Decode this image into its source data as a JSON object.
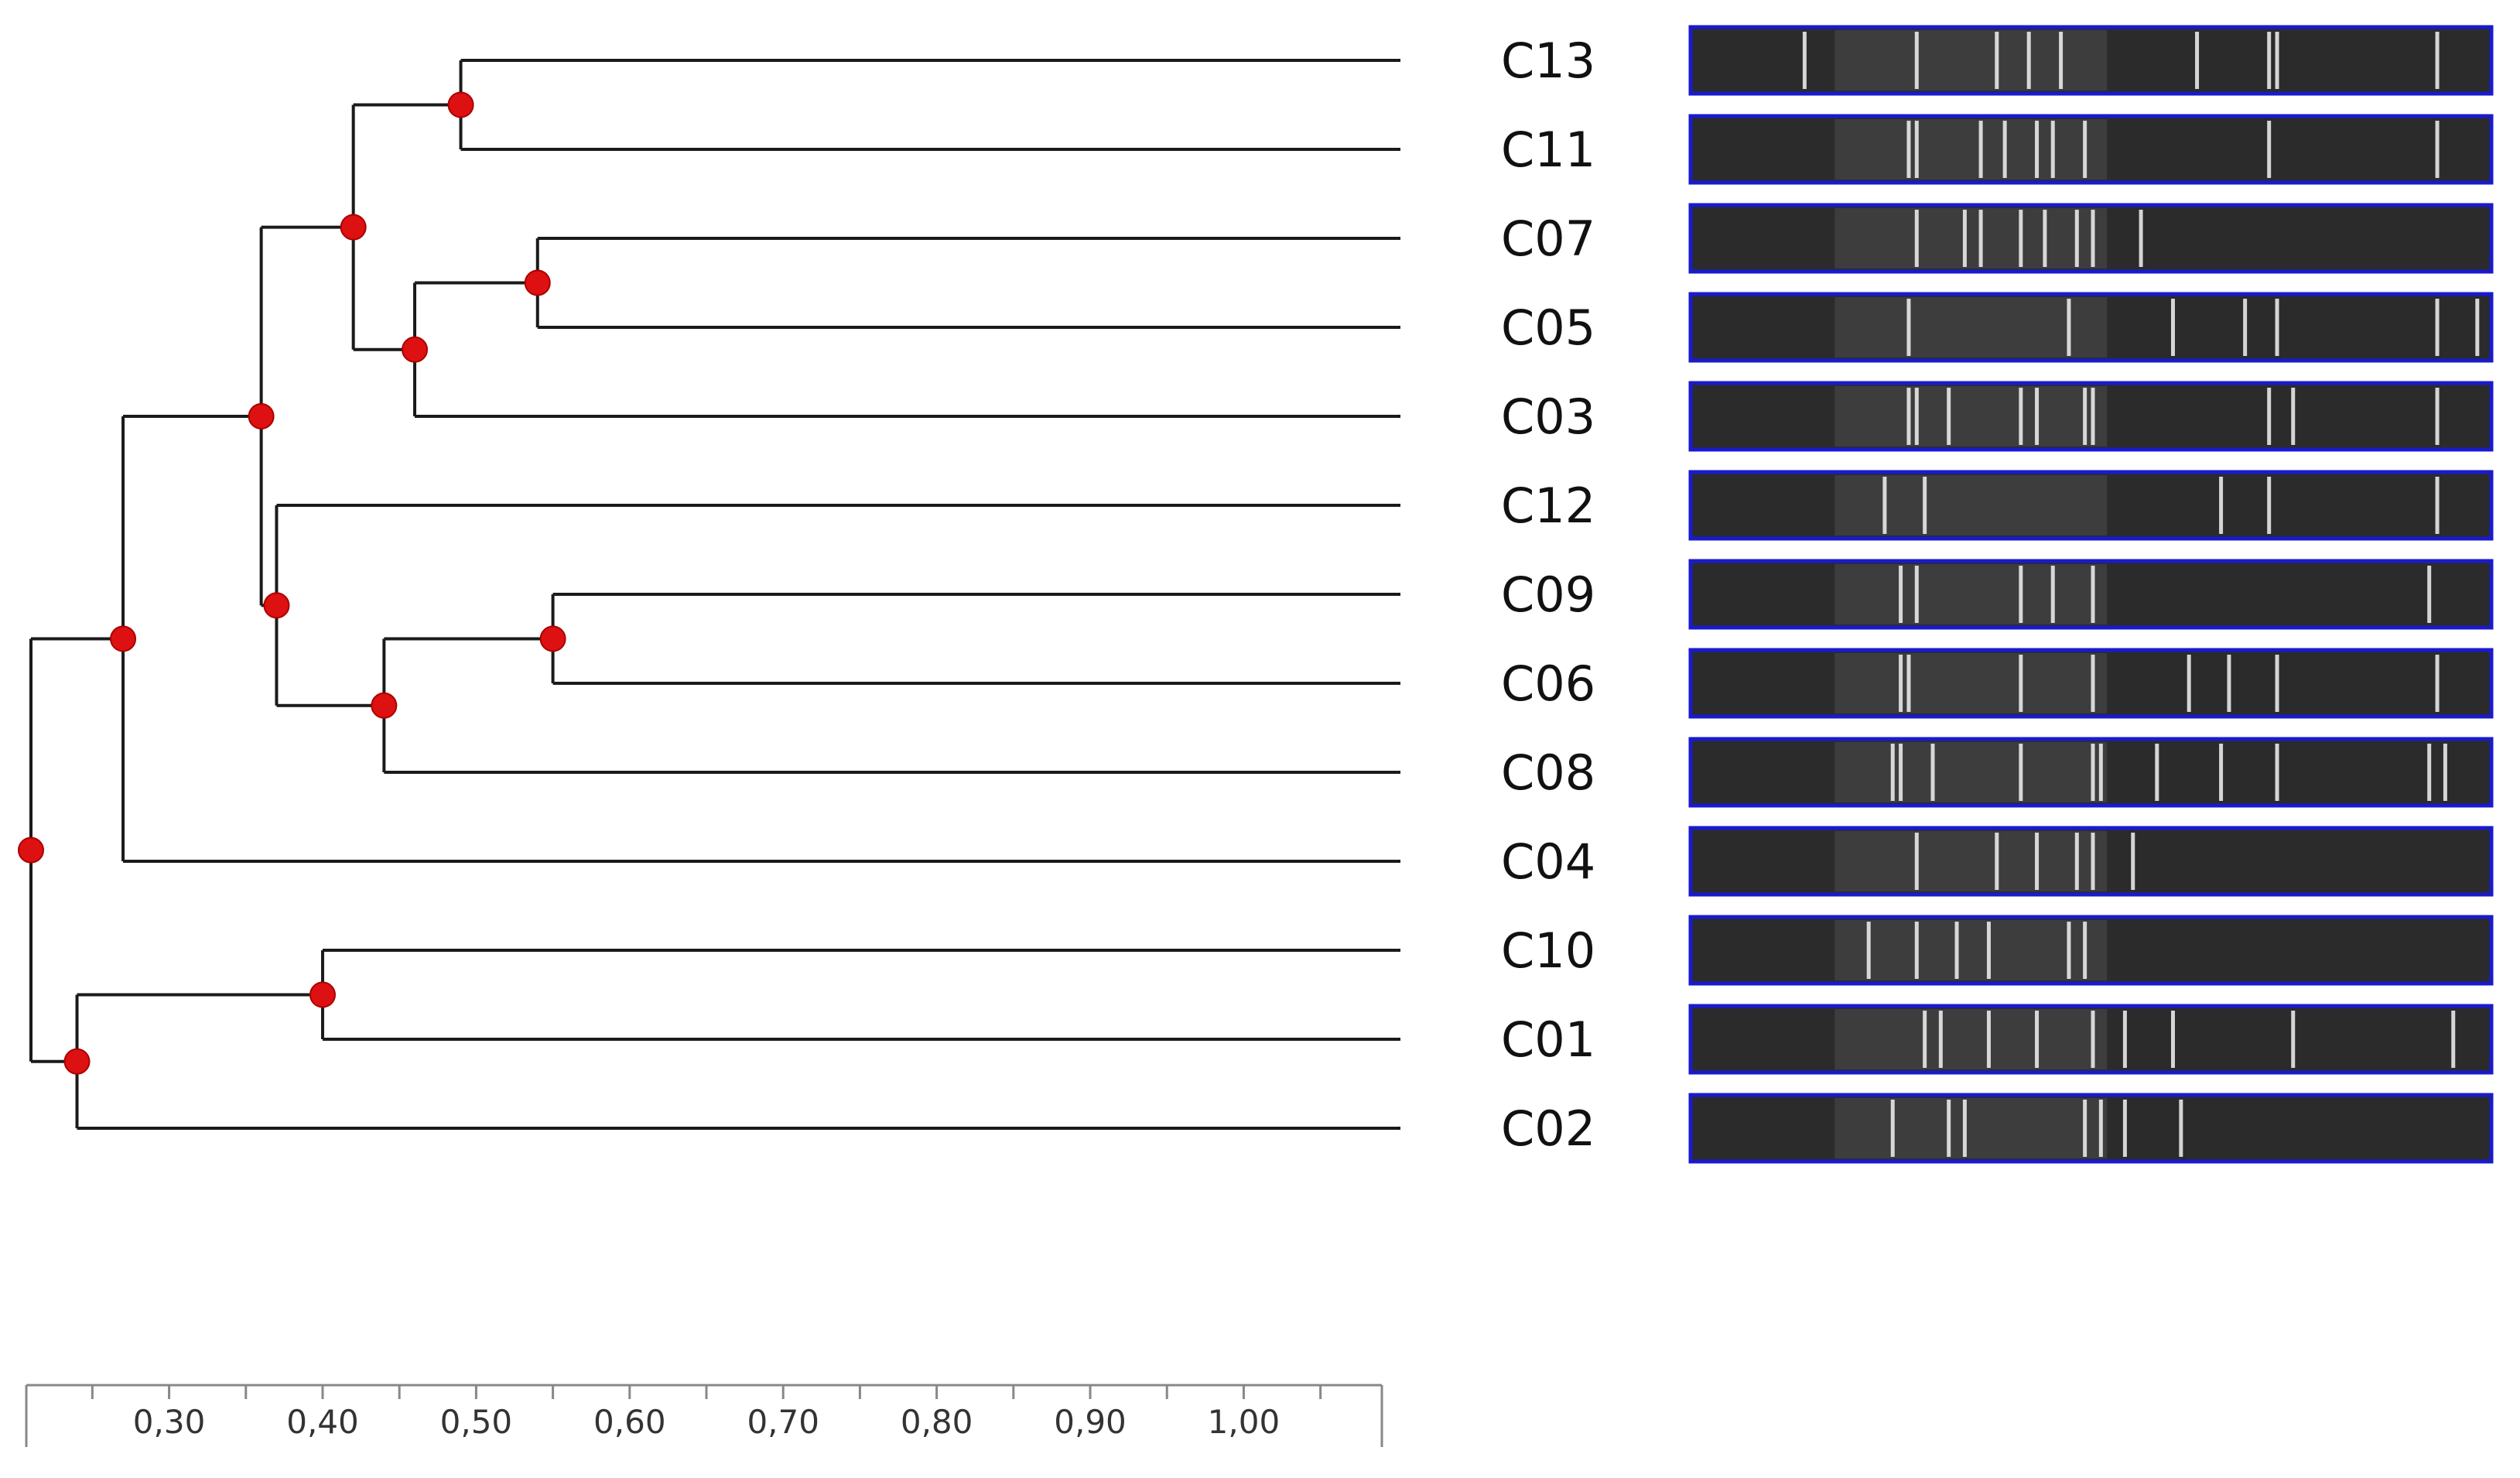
{
  "figure": {
    "kind": "dendrogram with gel fingerprint lanes",
    "leaves": [
      "C13",
      "C11",
      "C07",
      "C05",
      "C03",
      "C12",
      "C09",
      "C06",
      "C08",
      "C04",
      "C10",
      "C01",
      "C02"
    ],
    "axis": {
      "ticks": [
        "0,30",
        "0,40",
        "0,50",
        "0,60",
        "0,70",
        "0,80",
        "0,90",
        "1,00"
      ],
      "range": [
        0.21,
        1.09
      ]
    },
    "nodes": [
      {
        "id": "n_c13_c11",
        "height": 0.49,
        "children": [
          "C13",
          "C11"
        ]
      },
      {
        "id": "n_c07_c05",
        "height": 0.54,
        "children": [
          "C07",
          "C05"
        ]
      },
      {
        "id": "n_c0705_c03",
        "height": 0.46,
        "children": [
          "n_c07_c05",
          "C03"
        ]
      },
      {
        "id": "n_top4",
        "height": 0.42,
        "children": [
          "n_c13_c11",
          "n_c0705_c03"
        ]
      },
      {
        "id": "n_c09_c06",
        "height": 0.55,
        "children": [
          "C09",
          "C06"
        ]
      },
      {
        "id": "n_c0906_c08",
        "height": 0.44,
        "children": [
          "n_c09_c06",
          "C08"
        ]
      },
      {
        "id": "n_c12_grp",
        "height": 0.37,
        "children": [
          "C12",
          "n_c0906_c08"
        ]
      },
      {
        "id": "n_upper",
        "height": 0.36,
        "children": [
          "n_top4",
          "n_c12_grp"
        ]
      },
      {
        "id": "n_upper_c04",
        "height": 0.27,
        "children": [
          "n_upper",
          "C04"
        ]
      },
      {
        "id": "n_c10_c01",
        "height": 0.4,
        "children": [
          "C10",
          "C01"
        ]
      },
      {
        "id": "n_lower",
        "height": 0.24,
        "children": [
          "n_c10_c01",
          "C02"
        ]
      },
      {
        "id": "root",
        "height": 0.21,
        "children": [
          "n_upper_c04",
          "n_lower"
        ]
      }
    ],
    "colors": {
      "line": "#1a1a1a",
      "node": "#dd1111",
      "lane_border": "#1a1acc",
      "lane_bg": "#2b2b2b",
      "band": "#e8e8e8",
      "axis": "#888888"
    },
    "lanes": {
      "C13": [
        0.14,
        0.28,
        0.38,
        0.42,
        0.46,
        0.63,
        0.72,
        0.73,
        0.93
      ],
      "C11": [
        0.27,
        0.28,
        0.36,
        0.39,
        0.43,
        0.45,
        0.49,
        0.72,
        0.93
      ],
      "C07": [
        0.28,
        0.34,
        0.36,
        0.41,
        0.44,
        0.48,
        0.5,
        0.56
      ],
      "C05": [
        0.27,
        0.47,
        0.6,
        0.69,
        0.73,
        0.93,
        0.98
      ],
      "C03": [
        0.27,
        0.28,
        0.32,
        0.41,
        0.43,
        0.49,
        0.5,
        0.72,
        0.75,
        0.93
      ],
      "C12": [
        0.24,
        0.29,
        0.66,
        0.72,
        0.93
      ],
      "C09": [
        0.26,
        0.28,
        0.41,
        0.45,
        0.5,
        0.92
      ],
      "C06": [
        0.26,
        0.27,
        0.41,
        0.5,
        0.62,
        0.67,
        0.73,
        0.93
      ],
      "C08": [
        0.25,
        0.26,
        0.3,
        0.41,
        0.5,
        0.51,
        0.58,
        0.66,
        0.73,
        0.92,
        0.94
      ],
      "C04": [
        0.28,
        0.38,
        0.43,
        0.48,
        0.5,
        0.55
      ],
      "C10": [
        0.22,
        0.28,
        0.33,
        0.37,
        0.47,
        0.49
      ],
      "C01": [
        0.29,
        0.31,
        0.37,
        0.43,
        0.5,
        0.54,
        0.6,
        0.75,
        0.95
      ],
      "C02": [
        0.25,
        0.32,
        0.34,
        0.49,
        0.51,
        0.54,
        0.61
      ]
    }
  }
}
